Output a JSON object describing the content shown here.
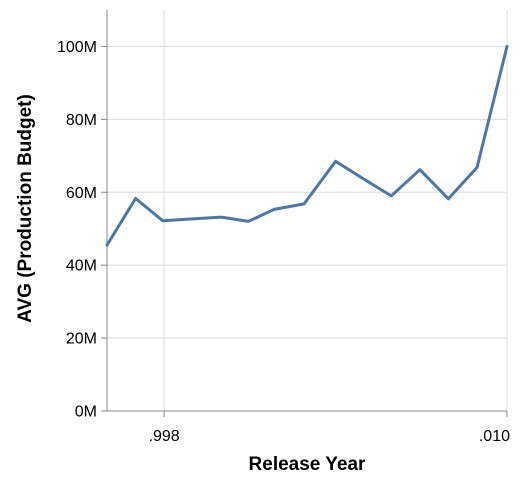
{
  "chart_data": {
    "type": "line",
    "title": "",
    "xlabel": "Release Year",
    "ylabel": "AVG (Production Budget)",
    "xlim": [
      1996.0,
      2010.0
    ],
    "ylim": [
      0,
      110000000
    ],
    "grid": true,
    "x_ticks": [
      {
        "value": 1998,
        "label": ".998"
      },
      {
        "value": 2010,
        "label": ".010"
      }
    ],
    "y_ticks": [
      {
        "value": 0,
        "label": "0M"
      },
      {
        "value": 20000000,
        "label": "20M"
      },
      {
        "value": 40000000,
        "label": "40M"
      },
      {
        "value": 60000000,
        "label": "60M"
      },
      {
        "value": 80000000,
        "label": "80M"
      },
      {
        "value": 100000000,
        "label": "100M"
      }
    ],
    "series": [
      {
        "name": "AVG (Production Budget)",
        "color": "#4c78a8",
        "x": [
          1996.0,
          1997.0,
          1997.95,
          1999.0,
          2000.0,
          2000.95,
          2001.85,
          2002.9,
          2004.0,
          2004.95,
          2005.95,
          2006.95,
          2007.95,
          2008.95,
          2010.0
        ],
        "values": [
          45500000,
          58300000,
          52200000,
          52700000,
          53200000,
          52000000,
          55300000,
          56800000,
          68500000,
          63800000,
          59000000,
          66200000,
          58200000,
          66800000,
          100000000
        ]
      }
    ]
  }
}
